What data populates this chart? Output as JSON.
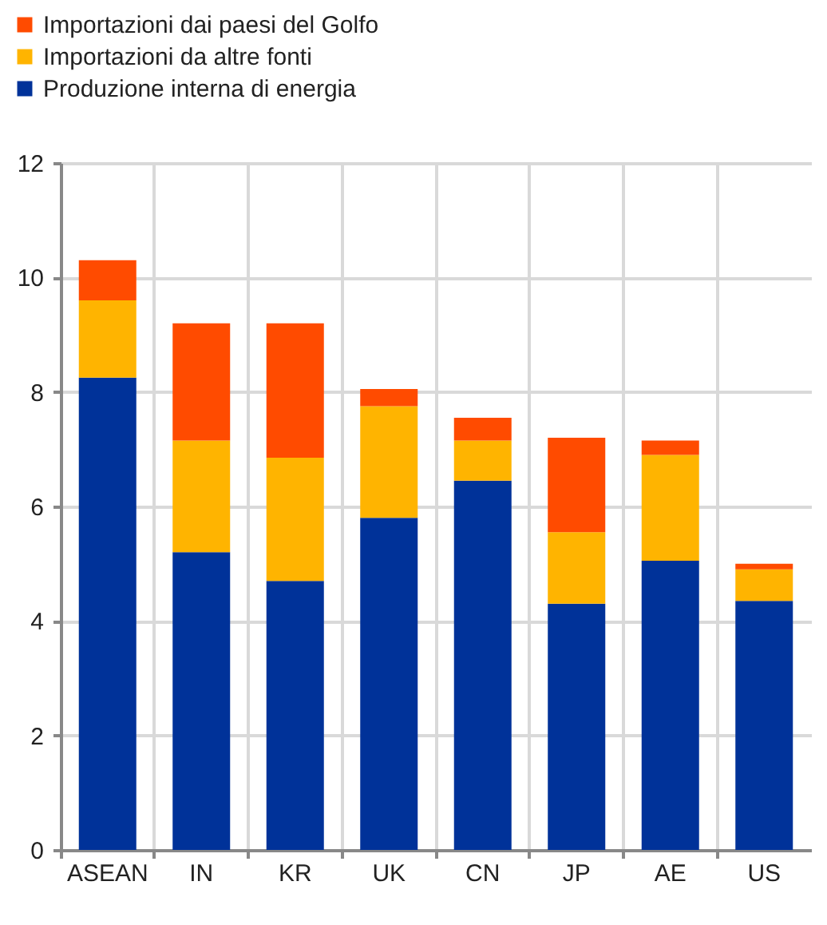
{
  "chart_data": {
    "type": "bar",
    "stacked": true,
    "categories": [
      "ASEAN",
      "IN",
      "KR",
      "UK",
      "CN",
      "JP",
      "AE",
      "US"
    ],
    "series": [
      {
        "name": "Produzione interna di energia",
        "color": "#003299",
        "values": [
          8.25,
          5.2,
          4.7,
          5.8,
          6.45,
          4.3,
          5.05,
          4.35
        ]
      },
      {
        "name": "Importazioni da altre fonti",
        "color": "#ffb400",
        "values": [
          1.35,
          1.95,
          2.15,
          1.95,
          0.7,
          1.25,
          1.85,
          0.55
        ]
      },
      {
        "name": "Importazioni dai paesi del Golfo",
        "color": "#ff4b00",
        "values": [
          0.7,
          2.05,
          2.35,
          0.3,
          0.4,
          1.65,
          0.25,
          0.1
        ]
      }
    ],
    "ylim": [
      0,
      12
    ],
    "yticks": [
      0,
      2,
      4,
      6,
      8,
      10,
      12
    ],
    "grid": true,
    "legend": "top left"
  }
}
